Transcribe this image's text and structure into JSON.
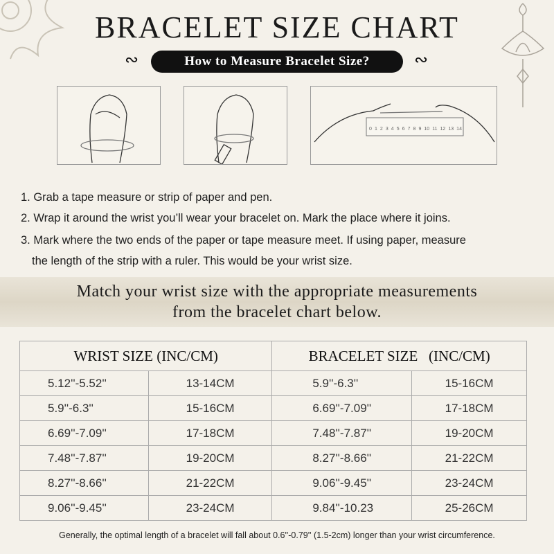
{
  "title": "BRACELET SIZE CHART",
  "subtitle": "How to Measure Bracelet Size?",
  "ruler_numbers": [
    "0",
    "1",
    "2",
    "3",
    "4",
    "5",
    "6",
    "7",
    "8",
    "9",
    "10",
    "11",
    "12",
    "13",
    "14"
  ],
  "steps": [
    "1. Grab a tape measure or strip of paper and pen.",
    "2. Wrap it around the wrist you’ll wear your bracelet on. Mark the place where it joins.",
    "3. Mark where the two ends of the paper or tape measure meet. If using paper, measure",
    "the length of the strip with a ruler. This would be your wrist size."
  ],
  "match_line1": "Match your wrist size with the appropriate measurements",
  "match_line2": "from the bracelet chart below.",
  "table": {
    "headers": [
      "WRIST SIZE (INC/CM)",
      "BRACELET SIZE   (INC/CM)"
    ],
    "rows": [
      [
        "5.12''-5.52''",
        "13-14CM",
        "5.9''-6.3''",
        "15-16CM"
      ],
      [
        "5.9''-6.3''",
        "15-16CM",
        "6.69''-7.09''",
        "17-18CM"
      ],
      [
        "6.69''-7.09''",
        "17-18CM",
        "7.48''-7.87''",
        "19-20CM"
      ],
      [
        "7.48''-7.87''",
        "19-20CM",
        "8.27''-8.66''",
        "21-22CM"
      ],
      [
        "8.27''-8.66''",
        "21-22CM",
        "9.06''-9.45''",
        "23-24CM"
      ],
      [
        "9.06''-9.45''",
        "23-24CM",
        "9.84''-10.23",
        "25-26CM"
      ]
    ]
  },
  "note": "Generally, the optimal length of a bracelet will fall about 0.6''-0.79'' (1.5-2cm) longer than your wrist circumference."
}
